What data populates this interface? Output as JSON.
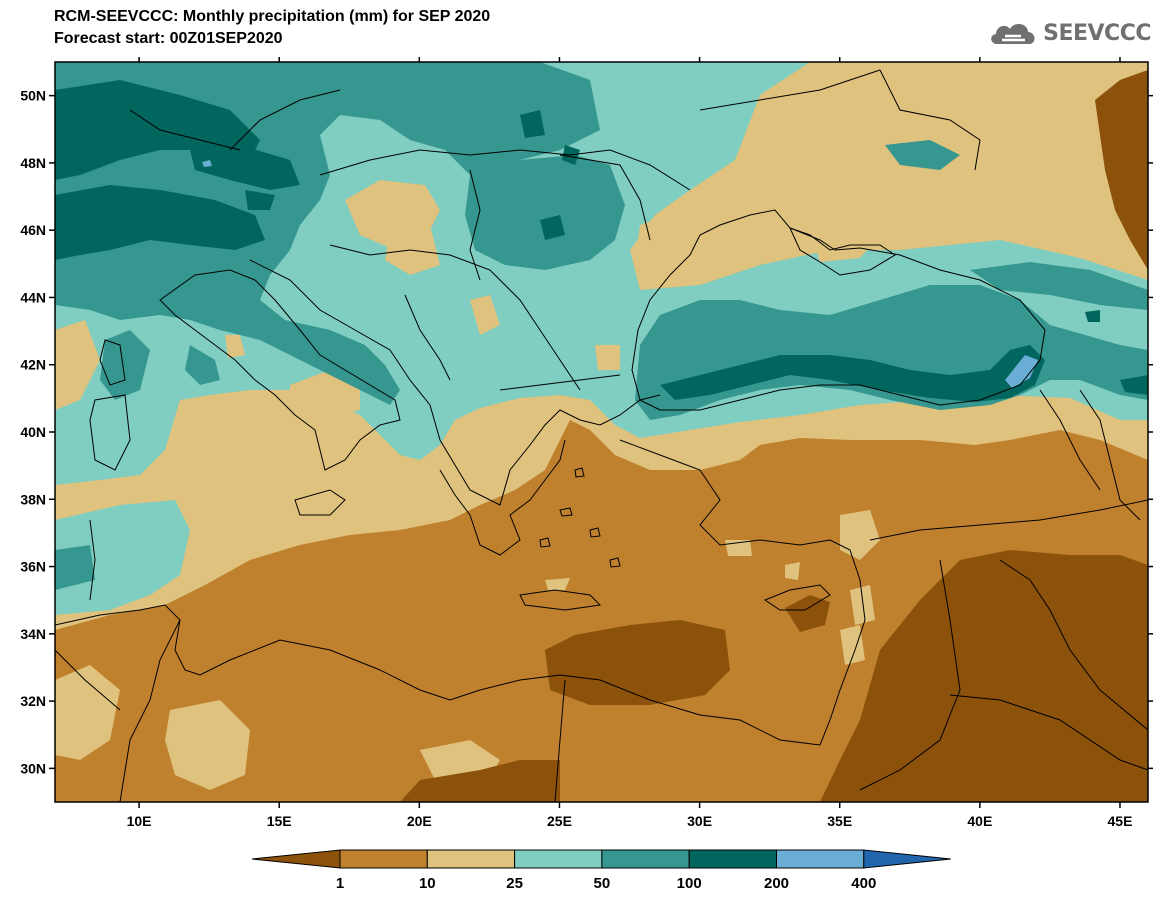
{
  "title_line1": "RCM-SEEVCCC: Monthly precipitation (mm) for SEP 2020",
  "title_line2": "Forecast start: 00Z01SEP2020",
  "logo_text": "SEEVCCC",
  "map": {
    "lon_range": [
      7,
      46
    ],
    "lat_range": [
      29,
      51
    ],
    "lat_ticks": [
      {
        "value": 50,
        "label": "50N"
      },
      {
        "value": 48,
        "label": "48N"
      },
      {
        "value": 46,
        "label": "46N"
      },
      {
        "value": 44,
        "label": "44N"
      },
      {
        "value": 42,
        "label": "42N"
      },
      {
        "value": 40,
        "label": "40N"
      },
      {
        "value": 38,
        "label": "38N"
      },
      {
        "value": 36,
        "label": "36N"
      },
      {
        "value": 34,
        "label": "34N"
      },
      {
        "value": 32,
        "label": "32N"
      },
      {
        "value": 30,
        "label": "30N"
      }
    ],
    "lon_ticks": [
      {
        "value": 10,
        "label": "10E"
      },
      {
        "value": 15,
        "label": "15E"
      },
      {
        "value": 20,
        "label": "20E"
      },
      {
        "value": 25,
        "label": "25E"
      },
      {
        "value": 30,
        "label": "30E"
      },
      {
        "value": 35,
        "label": "35E"
      },
      {
        "value": 40,
        "label": "40E"
      },
      {
        "value": 45,
        "label": "45E"
      }
    ]
  },
  "colorbar": {
    "levels": [
      "1",
      "10",
      "25",
      "50",
      "100",
      "200",
      "400"
    ],
    "colors": [
      "#8c510a",
      "#bf812d",
      "#dfc27d",
      "#80cdc1",
      "#35978f",
      "#01665e",
      "#6aaed6",
      "#2166ac"
    ]
  }
}
